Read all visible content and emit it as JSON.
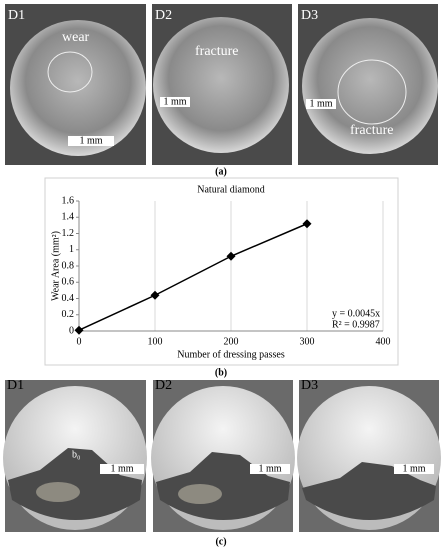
{
  "panel_a": {
    "labels": [
      "D1",
      "D2",
      "D3"
    ],
    "annotations": [
      "wear",
      "fracture",
      "fracture"
    ],
    "scale_bars": [
      "1 mm",
      "1 mm",
      "1 mm"
    ],
    "caption": "(a)"
  },
  "chart_data": {
    "type": "line",
    "title": "Natural diamond",
    "x_label": "Number of dressing passes",
    "y_label": "Wear Area (mm²)",
    "x": [
      0,
      100,
      200,
      300
    ],
    "values": [
      0.01,
      0.44,
      0.92,
      1.32
    ],
    "color": "#000000",
    "xlim": [
      0,
      400
    ],
    "xticks": [
      0,
      100,
      200,
      300,
      400
    ],
    "ylim": [
      0,
      1.6
    ],
    "yticks": [
      0,
      0.2,
      0.4,
      0.6,
      0.8,
      1,
      1.2,
      1.4,
      1.6
    ],
    "grid": "x",
    "annotations": [
      "y = 0.0045x",
      "R² = 0.9987"
    ],
    "caption": "(b)"
  },
  "panel_c": {
    "labels": [
      "D1",
      "D2",
      "D3"
    ],
    "annotations": [
      "b₀"
    ],
    "scale_bars": [
      "1 mm",
      "1 mm",
      "1 mm"
    ],
    "caption": "(c)"
  }
}
